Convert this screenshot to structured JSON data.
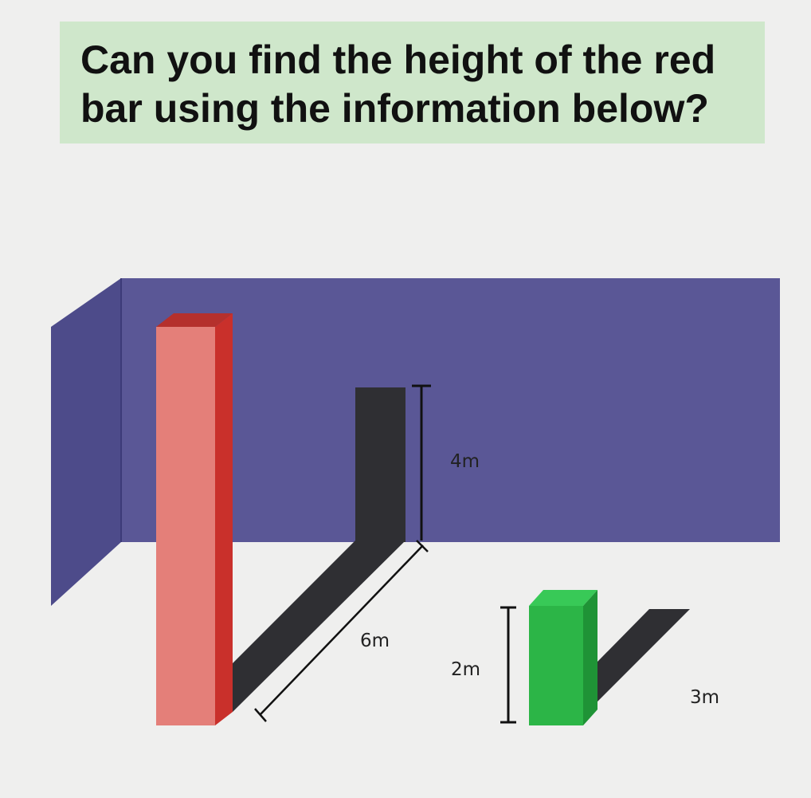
{
  "title": {
    "line1": "Can you find the height of the red",
    "line2": "bar using the information below?"
  },
  "labels": {
    "shadow_height": "4m",
    "shadow_length": "6m",
    "green_height": "2m",
    "green_shadow": "3m"
  },
  "colors": {
    "background": "#efefee",
    "title_box": "#cfe7cb",
    "wall": "#5a5796",
    "wall_side": "#4d4b8a",
    "red_bar_front": "#e47f79",
    "red_bar_side": "#c9302b",
    "green_bar_front": "#2cb547",
    "green_bar_side": "#1f9336",
    "shadow": "#2f2f33"
  }
}
